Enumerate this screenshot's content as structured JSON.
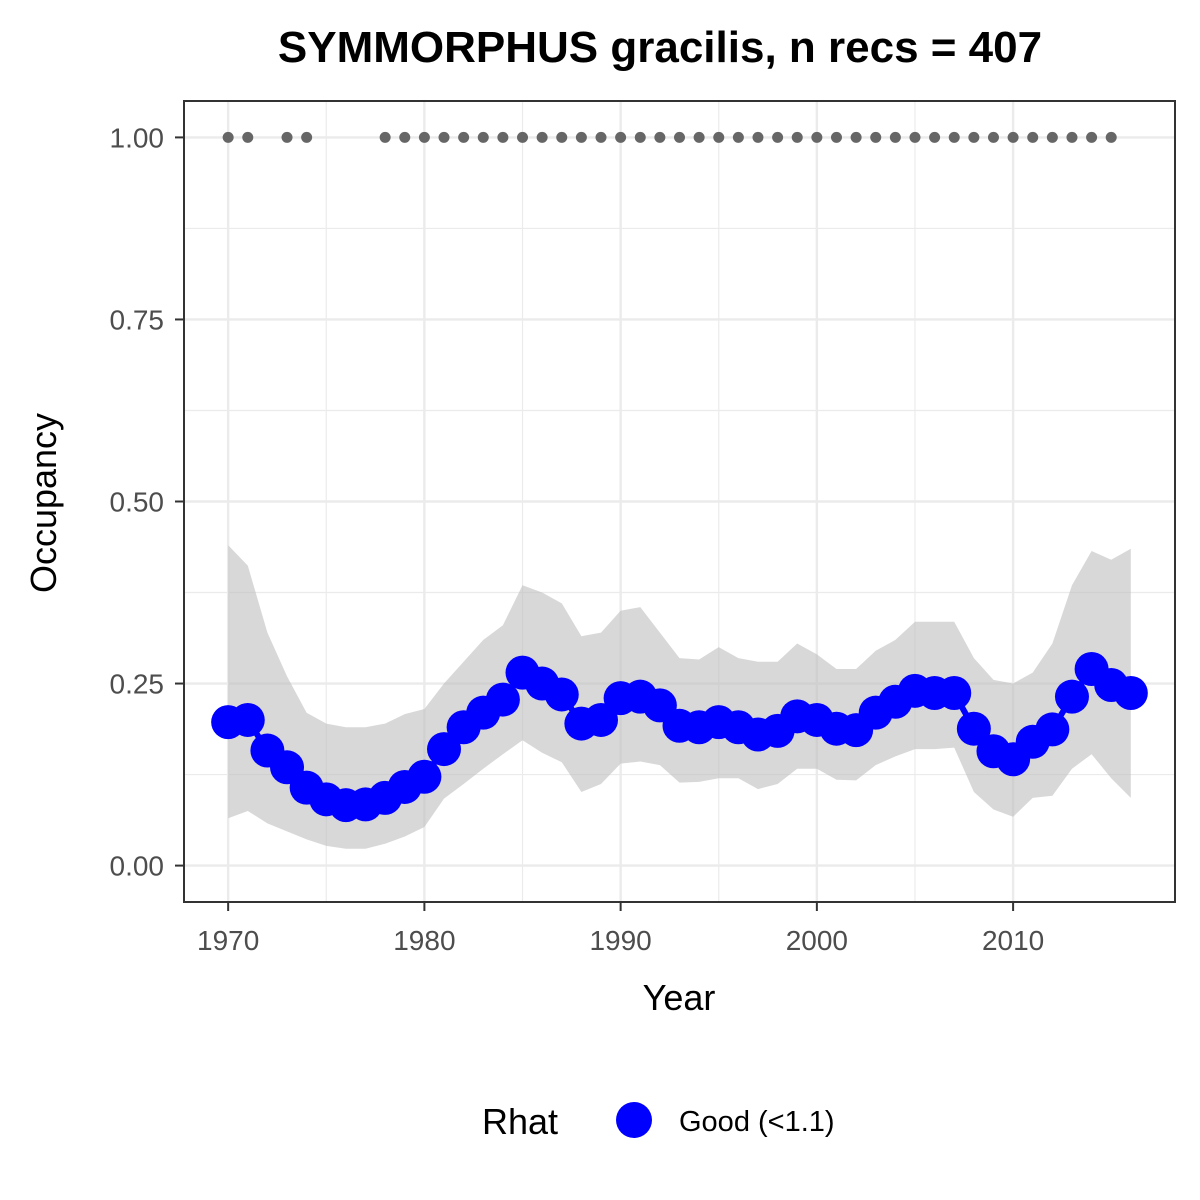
{
  "chart_data": {
    "type": "line",
    "title": "SYMMORPHUS gracilis, n recs = 407",
    "xlabel": "Year",
    "ylabel": "Occupancy",
    "xlim": [
      1967.75,
      2018.25
    ],
    "ylim": [
      -0.05,
      1.05
    ],
    "x_ticks": [
      1970,
      1980,
      1990,
      2000,
      2010
    ],
    "x_tick_labels": [
      "1970",
      "1980",
      "1990",
      "2000",
      "2010"
    ],
    "y_ticks": [
      0,
      0.25,
      0.5,
      0.75,
      1
    ],
    "y_tick_labels": [
      "0.00",
      "0.25",
      "0.50",
      "0.75",
      "1.00"
    ],
    "grid": true,
    "legend": {
      "title": "Rhat",
      "position": "bottom",
      "entries": [
        {
          "label": "Good (<1.1)",
          "color": "#0000ff"
        }
      ]
    },
    "colors": {
      "line": "#0000ff",
      "ribbon": "#bebebe",
      "records": "#666666",
      "grid": "#ebebeb",
      "border": "#333333"
    },
    "x": [
      1970,
      1971,
      1972,
      1973,
      1974,
      1975,
      1976,
      1977,
      1978,
      1979,
      1980,
      1981,
      1982,
      1983,
      1984,
      1985,
      1986,
      1987,
      1988,
      1989,
      1990,
      1991,
      1992,
      1993,
      1994,
      1995,
      1996,
      1997,
      1998,
      1999,
      2000,
      2001,
      2002,
      2003,
      2004,
      2005,
      2006,
      2007,
      2008,
      2009,
      2010,
      2011,
      2012,
      2013,
      2014,
      2015,
      2016
    ],
    "series": [
      {
        "values": [
          0.197,
          0.2,
          0.158,
          0.135,
          0.107,
          0.091,
          0.083,
          0.084,
          0.093,
          0.108,
          0.122,
          0.16,
          0.19,
          0.21,
          0.228,
          0.265,
          0.25,
          0.235,
          0.195,
          0.2,
          0.23,
          0.232,
          0.22,
          0.192,
          0.19,
          0.197,
          0.19,
          0.18,
          0.185,
          0.205,
          0.2,
          0.188,
          0.186,
          0.21,
          0.225,
          0.24,
          0.237,
          0.237,
          0.188,
          0.157,
          0.146,
          0.17,
          0.187,
          0.232,
          0.27,
          0.248,
          0.237
        ],
        "lower": [
          0.065,
          0.075,
          0.058,
          0.047,
          0.036,
          0.027,
          0.023,
          0.023,
          0.03,
          0.04,
          0.053,
          0.092,
          0.112,
          0.133,
          0.153,
          0.172,
          0.155,
          0.142,
          0.101,
          0.112,
          0.14,
          0.143,
          0.138,
          0.114,
          0.115,
          0.12,
          0.12,
          0.105,
          0.112,
          0.133,
          0.133,
          0.118,
          0.117,
          0.138,
          0.15,
          0.16,
          0.16,
          0.162,
          0.101,
          0.077,
          0.067,
          0.093,
          0.096,
          0.133,
          0.153,
          0.12,
          0.093
        ],
        "upper": [
          0.44,
          0.412,
          0.32,
          0.26,
          0.21,
          0.195,
          0.19,
          0.19,
          0.195,
          0.208,
          0.215,
          0.25,
          0.28,
          0.31,
          0.33,
          0.385,
          0.375,
          0.36,
          0.315,
          0.32,
          0.35,
          0.355,
          0.32,
          0.285,
          0.283,
          0.3,
          0.285,
          0.28,
          0.28,
          0.305,
          0.29,
          0.27,
          0.27,
          0.295,
          0.31,
          0.335,
          0.335,
          0.335,
          0.285,
          0.255,
          0.25,
          0.265,
          0.305,
          0.385,
          0.432,
          0.42,
          0.435
        ]
      }
    ],
    "record_years": [
      1970,
      1971,
      1973,
      1974,
      1978,
      1979,
      1980,
      1981,
      1982,
      1983,
      1984,
      1985,
      1986,
      1987,
      1988,
      1989,
      1990,
      1991,
      1992,
      1993,
      1994,
      1995,
      1996,
      1997,
      1998,
      1999,
      2000,
      2001,
      2002,
      2003,
      2004,
      2005,
      2006,
      2007,
      2008,
      2009,
      2010,
      2011,
      2012,
      2013,
      2014,
      2015
    ],
    "record_value": 1.0
  }
}
